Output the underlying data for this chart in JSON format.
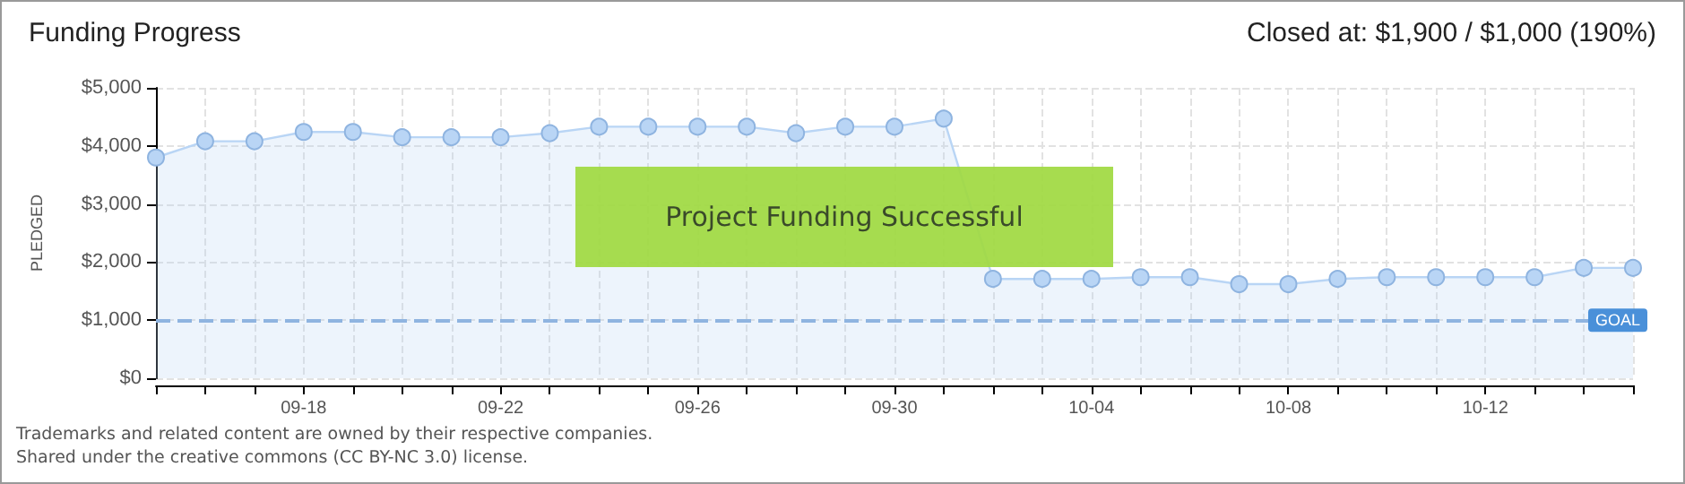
{
  "chart_data": {
    "type": "area",
    "title": "Funding Progress",
    "subtitle": "Closed at: $1,900 / $1,000 (190%)",
    "ylabel": "PLEDGED",
    "categories": [
      null,
      null,
      null,
      "09-18",
      null,
      null,
      null,
      "09-22",
      null,
      null,
      null,
      "09-26",
      null,
      null,
      null,
      "09-30",
      null,
      null,
      null,
      "10-04",
      null,
      null,
      null,
      "10-08",
      null,
      null,
      null,
      "10-12",
      null,
      null,
      null
    ],
    "series": [
      {
        "color": "#b9d5f5",
        "values": [
          3800,
          4080,
          4080,
          4240,
          4240,
          4150,
          4150,
          4150,
          4220,
          4330,
          4330,
          4330,
          4330,
          4220,
          4330,
          4330,
          4470,
          1710,
          1710,
          1710,
          1740,
          1740,
          1620,
          1620,
          1710,
          1740,
          1740,
          1740,
          1740,
          1900,
          1900
        ]
      }
    ],
    "ylim": [
      0,
      5000
    ],
    "yticks": [
      {
        "value": 0,
        "label": "$0"
      },
      {
        "value": 1000,
        "label": "$1,000"
      },
      {
        "value": 2000,
        "label": "$2,000"
      },
      {
        "value": 3000,
        "label": "$3,000"
      },
      {
        "value": 4000,
        "label": "$4,000"
      },
      {
        "value": 5000,
        "label": "$5,000"
      }
    ],
    "ref_lines": [
      {
        "axis": "y",
        "value": 1000,
        "label": "GOAL",
        "color": "#8fb4e0",
        "line_style": "dashed"
      }
    ],
    "annotations": [
      "Project Funding Successful",
      "Trademarks and related content are owned by their respective companies.",
      "Shared under the creative commons (CC BY-NC 3.0) license."
    ],
    "grid": true,
    "marker": "circle",
    "line_style": "solid"
  }
}
